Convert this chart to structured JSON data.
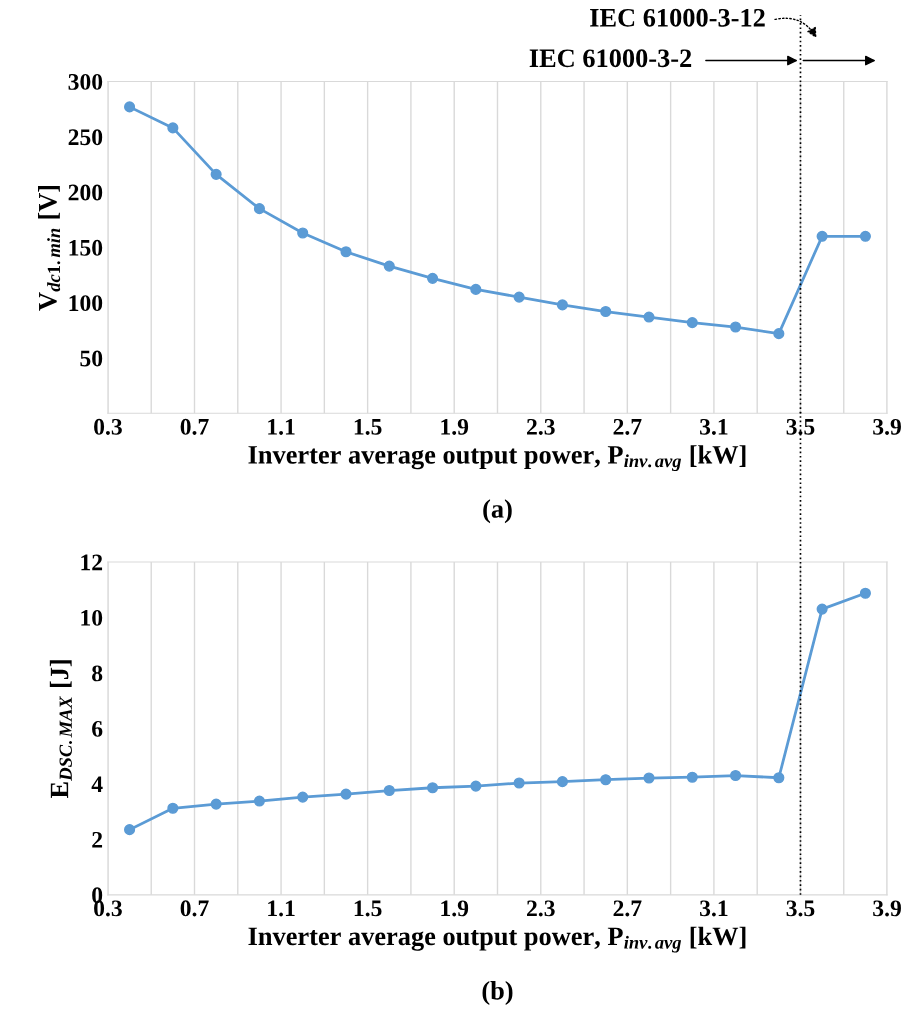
{
  "chart_data": [
    {
      "type": "line",
      "xlabel": "Inverter average output power, P$_{inv.avg}$ [kW]",
      "ylabel": "V$_{dc1.min}$ [V]",
      "x": [
        0.4,
        0.6,
        0.8,
        1.0,
        1.2,
        1.4,
        1.6,
        1.8,
        2.0,
        2.2,
        2.4,
        2.6,
        2.8,
        3.0,
        3.2,
        3.4,
        3.6,
        3.8
      ],
      "series": [
        {
          "color": "#5b9bd5",
          "values": [
            277,
            258,
            216,
            185,
            163,
            146,
            133,
            122,
            112,
            105,
            98,
            92,
            87,
            82,
            78,
            72,
            160,
            160
          ]
        }
      ],
      "xlim": [
        0.3,
        3.9
      ],
      "xticks": [
        0.3,
        {
          "value": 0.5,
          "label": null
        },
        0.7,
        {
          "value": 0.9,
          "label": null
        },
        1.1,
        {
          "value": 1.3,
          "label": null
        },
        1.5,
        {
          "value": 1.7,
          "label": null
        },
        1.9,
        {
          "value": 2.1,
          "label": null
        },
        2.3,
        {
          "value": 2.5,
          "label": null
        },
        2.7,
        {
          "value": 2.9,
          "label": null
        },
        3.1,
        {
          "value": 3.3,
          "label": null
        },
        3.5,
        {
          "value": 3.7,
          "label": null
        },
        3.9
      ],
      "ylim": [
        0,
        300
      ],
      "yticks": [
        50,
        100,
        150,
        200,
        250,
        300
      ],
      "grid": "x",
      "marker": "circle",
      "line_style": "solid",
      "ref_lines": [
        {
          "axis": "x",
          "value": 3.5,
          "line_style": "dotted",
          "color": "#000000"
        }
      ],
      "annotations": [
        "IEC 61000-3-12",
        "IEC 61000-3-2",
        "(a)"
      ]
    },
    {
      "type": "line",
      "xlabel": "Inverter average output power, P$_{inv.avg}$ [kW]",
      "ylabel": "E$_{DSC.MAX}$ [J]",
      "x": [
        0.4,
        0.6,
        0.8,
        1.0,
        1.2,
        1.4,
        1.6,
        1.8,
        2.0,
        2.2,
        2.4,
        2.6,
        2.8,
        3.0,
        3.2,
        3.4,
        3.6,
        3.8
      ],
      "series": [
        {
          "color": "#5b9bd5",
          "values": [
            2.35,
            3.12,
            3.27,
            3.38,
            3.52,
            3.63,
            3.76,
            3.86,
            3.92,
            4.03,
            4.08,
            4.15,
            4.21,
            4.24,
            4.3,
            4.22,
            10.3,
            10.87
          ]
        }
      ],
      "xlim": [
        0.3,
        3.9
      ],
      "xticks": [
        0.3,
        {
          "value": 0.5,
          "label": null
        },
        0.7,
        {
          "value": 0.9,
          "label": null
        },
        1.1,
        {
          "value": 1.3,
          "label": null
        },
        1.5,
        {
          "value": 1.7,
          "label": null
        },
        1.9,
        {
          "value": 2.1,
          "label": null
        },
        2.3,
        {
          "value": 2.5,
          "label": null
        },
        2.7,
        {
          "value": 2.9,
          "label": null
        },
        3.1,
        {
          "value": 3.3,
          "label": null
        },
        3.5,
        {
          "value": 3.7,
          "label": null
        },
        3.9
      ],
      "ylim": [
        0,
        12
      ],
      "yticks": [
        0,
        2,
        4,
        6,
        8,
        10,
        12
      ],
      "grid": "x",
      "marker": "circle",
      "line_style": "solid",
      "ref_lines": [
        {
          "axis": "x",
          "value": 3.5,
          "line_style": "dotted",
          "color": "#000000"
        }
      ],
      "annotations": [
        "(b)"
      ]
    }
  ]
}
